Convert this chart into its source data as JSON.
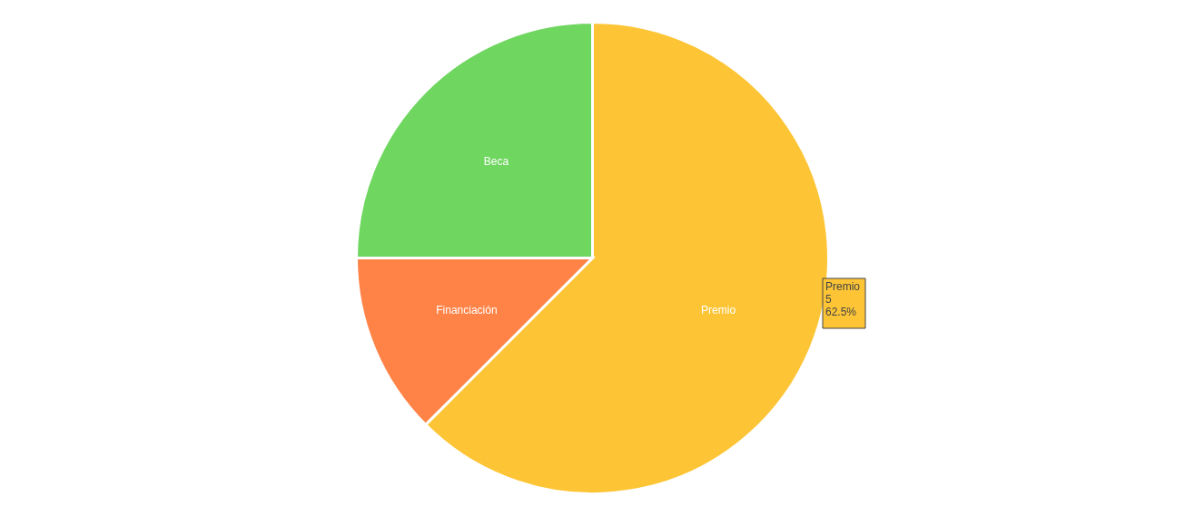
{
  "chart_data": {
    "type": "pie",
    "categories": [
      "Premio",
      "Financiación",
      "Beca"
    ],
    "values": [
      62.5,
      12.5,
      25
    ],
    "colors": [
      "#fdc536",
      "#ff8347",
      "#6fd660"
    ],
    "annotations": [
      "Premio\n5\n62.5%"
    ]
  }
}
